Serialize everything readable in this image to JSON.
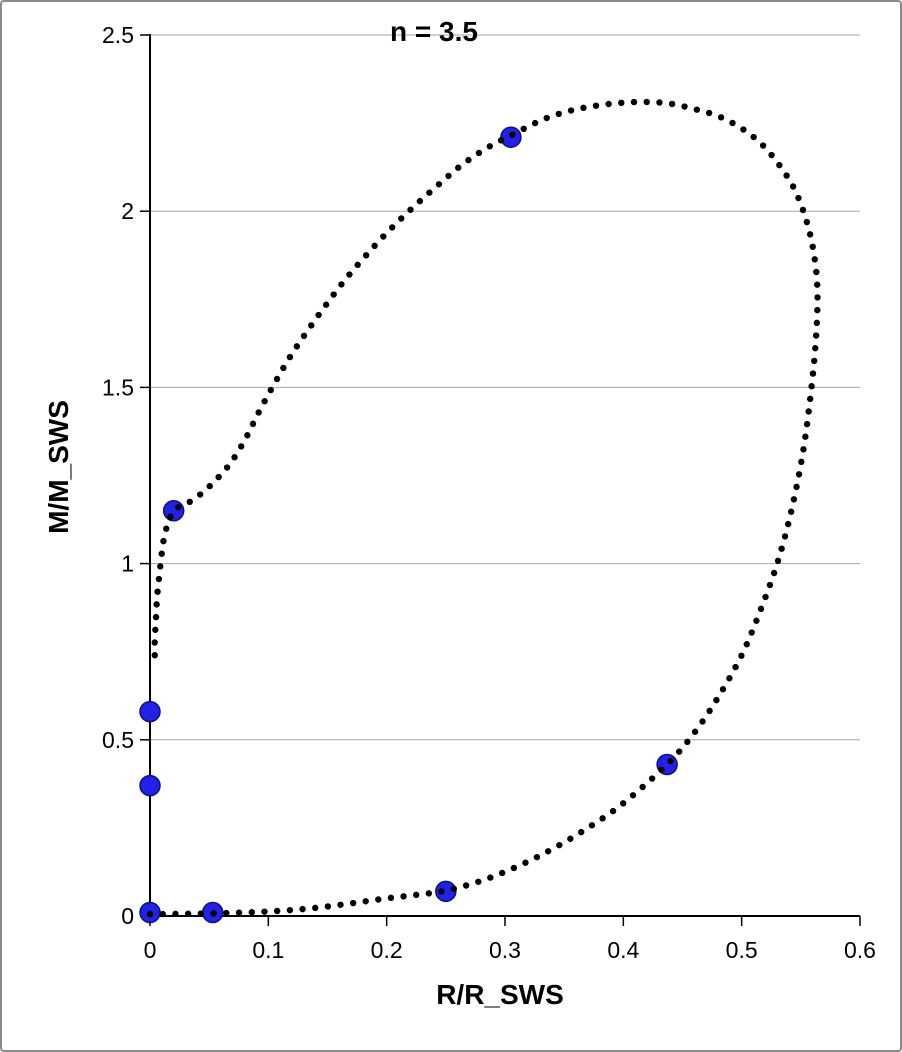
{
  "frame": {
    "background": "#ffffff",
    "border_color": "#8a8a8a"
  },
  "chart_data": {
    "type": "scatter",
    "title": "n = 3.5",
    "xlabel": "R/R_SWS",
    "ylabel": "M/M_SWS",
    "xlim": [
      0,
      0.6
    ],
    "ylim": [
      0,
      2.5
    ],
    "x_ticks": [
      0,
      0.1,
      0.2,
      0.3,
      0.4,
      0.5,
      0.6
    ],
    "x_tick_labels": [
      "0",
      "0.1",
      "0.2",
      "0.3",
      "0.4",
      "0.5",
      "0.6"
    ],
    "y_ticks": [
      0,
      0.5,
      1,
      1.5,
      2,
      2.5
    ],
    "y_tick_labels": [
      "0",
      "0.5",
      "1",
      "1.5",
      "2",
      "2.5"
    ],
    "grid": {
      "horizontal": true,
      "vertical": false,
      "color": "#a6a6a6"
    },
    "legend": "none",
    "axis_color": "#000000",
    "series": [
      {
        "name": "model-curve",
        "type": "scatter-dots",
        "color": "#000000",
        "marker_radius_px": 3.2,
        "render": "resample-even-spacing",
        "dot_count": 170,
        "points": [
          [
            0.0,
            0.005
          ],
          [
            0.02,
            0.006
          ],
          [
            0.045,
            0.007
          ],
          [
            0.07,
            0.009
          ],
          [
            0.095,
            0.012
          ],
          [
            0.12,
            0.017
          ],
          [
            0.145,
            0.025
          ],
          [
            0.17,
            0.036
          ],
          [
            0.2,
            0.05
          ],
          [
            0.225,
            0.06
          ],
          [
            0.25,
            0.072
          ],
          [
            0.28,
            0.1
          ],
          [
            0.31,
            0.14
          ],
          [
            0.34,
            0.19
          ],
          [
            0.37,
            0.25
          ],
          [
            0.4,
            0.32
          ],
          [
            0.437,
            0.43
          ],
          [
            0.46,
            0.52
          ],
          [
            0.48,
            0.62
          ],
          [
            0.5,
            0.74
          ],
          [
            0.515,
            0.86
          ],
          [
            0.53,
            1.0
          ],
          [
            0.542,
            1.15
          ],
          [
            0.552,
            1.32
          ],
          [
            0.559,
            1.5
          ],
          [
            0.563,
            1.65
          ],
          [
            0.564,
            1.78
          ],
          [
            0.561,
            1.88
          ],
          [
            0.555,
            1.97
          ],
          [
            0.545,
            2.06
          ],
          [
            0.532,
            2.13
          ],
          [
            0.517,
            2.19
          ],
          [
            0.5,
            2.235
          ],
          [
            0.48,
            2.27
          ],
          [
            0.46,
            2.29
          ],
          [
            0.44,
            2.305
          ],
          [
            0.42,
            2.31
          ],
          [
            0.4,
            2.308
          ],
          [
            0.378,
            2.3
          ],
          [
            0.355,
            2.285
          ],
          [
            0.332,
            2.26
          ],
          [
            0.305,
            2.215
          ],
          [
            0.285,
            2.18
          ],
          [
            0.263,
            2.13
          ],
          [
            0.242,
            2.07
          ],
          [
            0.222,
            2.01
          ],
          [
            0.202,
            1.945
          ],
          [
            0.184,
            1.88
          ],
          [
            0.166,
            1.81
          ],
          [
            0.15,
            1.74
          ],
          [
            0.134,
            1.665
          ],
          [
            0.119,
            1.59
          ],
          [
            0.105,
            1.51
          ],
          [
            0.092,
            1.43
          ],
          [
            0.08,
            1.35
          ],
          [
            0.068,
            1.285
          ],
          [
            0.055,
            1.235
          ],
          [
            0.042,
            1.195
          ],
          [
            0.03,
            1.168
          ],
          [
            0.02,
            1.15
          ],
          [
            0.013,
            1.09
          ],
          [
            0.01,
            1.03
          ],
          [
            0.008,
            0.97
          ],
          [
            0.006,
            0.905
          ],
          [
            0.005,
            0.84
          ],
          [
            0.004,
            0.78
          ],
          [
            0.004,
            0.74
          ]
        ]
      },
      {
        "name": "highlighted-models",
        "type": "scatter-dots",
        "color": "#2222e6",
        "stroke": "#10107a",
        "marker_radius_px": 10,
        "render": "direct",
        "points": [
          [
            0.0,
            0.01
          ],
          [
            0.053,
            0.01
          ],
          [
            0.25,
            0.07
          ],
          [
            0.437,
            0.43
          ],
          [
            0.0,
            0.37
          ],
          [
            0.0,
            0.58
          ],
          [
            0.02,
            1.15
          ],
          [
            0.305,
            2.21
          ]
        ]
      }
    ]
  }
}
